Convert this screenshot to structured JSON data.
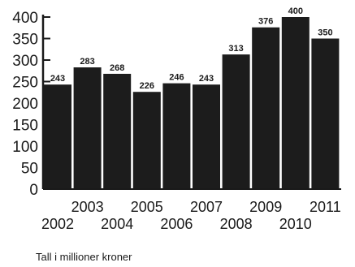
{
  "chart_data": {
    "type": "bar",
    "categories": [
      "2002",
      "2003",
      "2004",
      "2005",
      "2006",
      "2007",
      "2008",
      "2009",
      "2010",
      "2011"
    ],
    "values": [
      243,
      283,
      268,
      226,
      246,
      243,
      313,
      376,
      400,
      350
    ],
    "y_ticks": [
      "0",
      "50",
      "100",
      "150",
      "200",
      "250",
      "300",
      "350",
      "400"
    ],
    "ylim": [
      0,
      400
    ],
    "caption": "Tall i millioner kroner",
    "bar_color": "#1c1c1c",
    "grid": false
  }
}
